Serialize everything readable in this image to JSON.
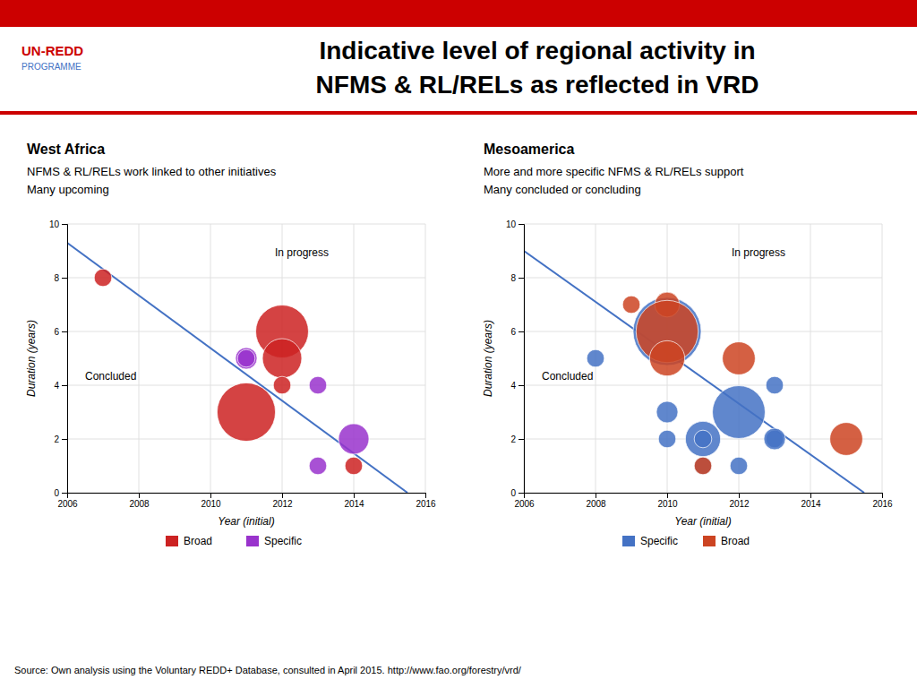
{
  "title": "Indicative level of regional activity in\nNFMS & RL/RELs as reflected in VRD",
  "annotations": [
    "UN-REDD",
    "PROGRAMME",
    "Source: Own analysis using the Voluntary REDD+ Database, consulted in April 2015. http://www.fao.org/forestry/vrd/"
  ],
  "chart_data": [
    {
      "type": "scatter",
      "title": "West Africa",
      "subtitle": [
        "NFMS & RL/RELs work linked to other initiatives",
        "Many upcoming"
      ],
      "x_label": "Year (initial)",
      "y_label": "Duration (years)",
      "xlim": [
        2006,
        2016
      ],
      "ylim": [
        0,
        10
      ],
      "xticks": [
        2006,
        2008,
        2010,
        2012,
        2014,
        2016
      ],
      "yticks": [
        0,
        2,
        4,
        6,
        8,
        10
      ],
      "grid": true,
      "legend": "bottom",
      "annotations": [
        "In progress",
        "Concluded"
      ],
      "series": [
        {
          "name": "Broad",
          "color": "#cc2222",
          "x": [
            2007,
            2011,
            2012,
            2012,
            2012,
            2014
          ],
          "values": [
            8,
            3,
            6,
            5,
            4,
            1
          ],
          "size": [
            200,
            2200,
            1800,
            1000,
            200,
            200
          ]
        },
        {
          "name": "Specific",
          "color": "#9933cc",
          "x": [
            2011,
            2011,
            2013,
            2013,
            2014
          ],
          "values": [
            5,
            5,
            4,
            1,
            2
          ],
          "size": [
            300,
            200,
            200,
            200,
            600
          ]
        },
        {
          "type": "line",
          "color": "#4472c4",
          "x": [
            2006,
            2015.5
          ],
          "values": [
            9.3,
            0
          ]
        }
      ]
    },
    {
      "type": "scatter",
      "title": "Mesoamerica",
      "subtitle": [
        "More and more specific NFMS & RL/RELs support",
        "Many concluded or concluding"
      ],
      "x_label": "Year (initial)",
      "y_label": "Duration (years)",
      "xlim": [
        2006,
        2016
      ],
      "ylim": [
        0,
        10
      ],
      "xticks": [
        2006,
        2008,
        2010,
        2012,
        2014,
        2016
      ],
      "yticks": [
        0,
        2,
        4,
        6,
        8,
        10
      ],
      "grid": true,
      "legend": "bottom",
      "annotations": [
        "In progress",
        "Concluded"
      ],
      "series": [
        {
          "name": "Specific",
          "color": "#4472c4",
          "x": [
            2008,
            2010,
            2010,
            2010,
            2011,
            2011,
            2011,
            2012,
            2012,
            2013,
            2013,
            2013
          ],
          "values": [
            5,
            6,
            3,
            2,
            2,
            2,
            1,
            3,
            1,
            2,
            2,
            4
          ],
          "size": [
            200,
            3000,
            300,
            200,
            800,
            200,
            200,
            1800,
            200,
            200,
            300,
            200
          ]
        },
        {
          "name": "Broad",
          "color": "#cc4422",
          "x": [
            2009,
            2010,
            2010,
            2010,
            2011,
            2012,
            2015
          ],
          "values": [
            7,
            7,
            6,
            5,
            1,
            5,
            2
          ],
          "size": [
            200,
            400,
            2500,
            800,
            200,
            700,
            700
          ]
        },
        {
          "type": "line",
          "color": "#4472c4",
          "x": [
            2006,
            2015.5
          ],
          "values": [
            9.0,
            0
          ]
        }
      ]
    }
  ]
}
